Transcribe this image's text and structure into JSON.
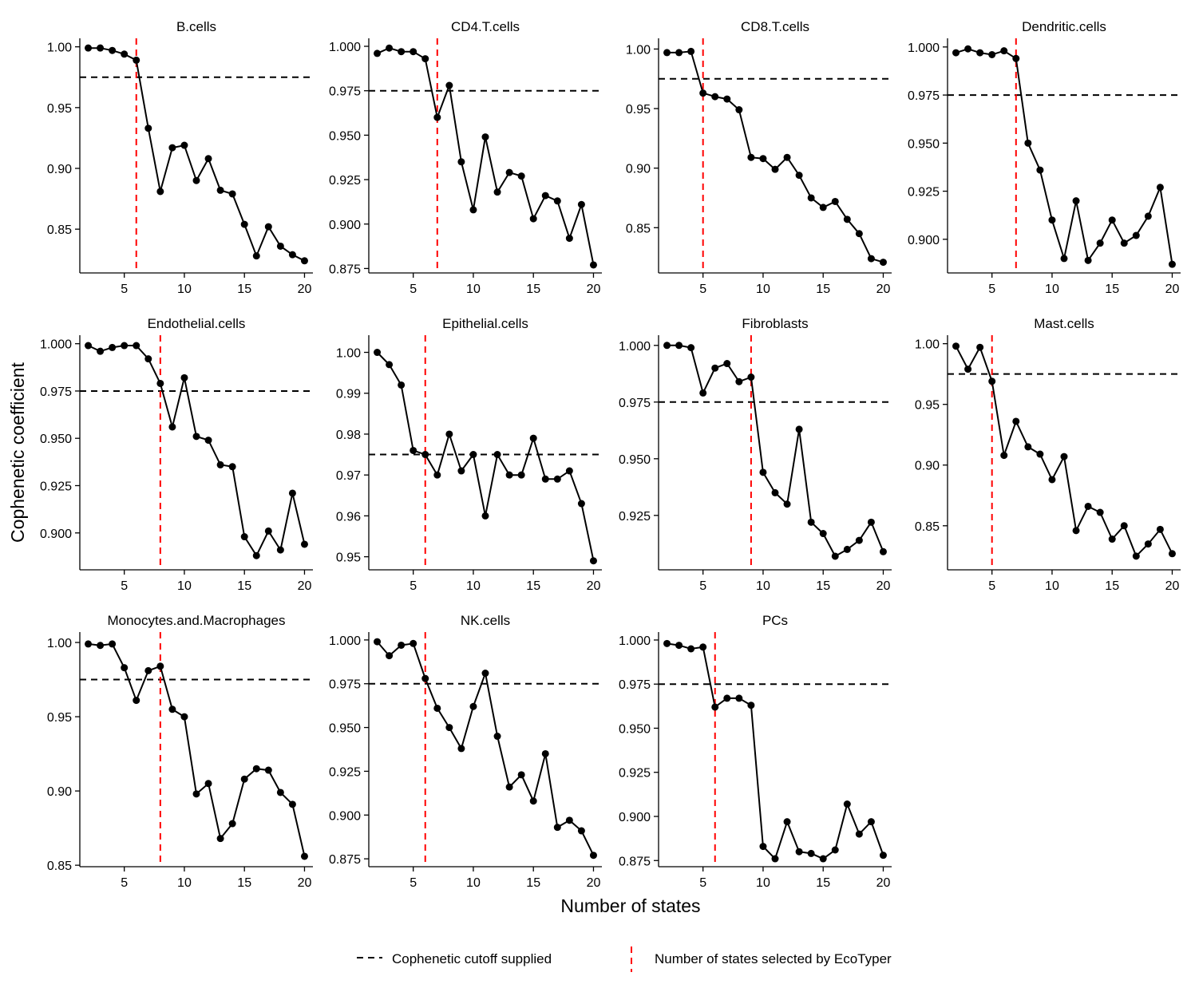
{
  "chart_data": {
    "type": "line",
    "xlabel": "Number of states",
    "ylabel": "Cophenetic coefficient",
    "cutoff": 0.975,
    "legend": {
      "position": "bottom",
      "items": [
        {
          "label": "Cophenetic cutoff supplied",
          "style": "black-dashed-horizontal"
        },
        {
          "label": "Number of states selected by EcoTyper",
          "style": "red-dashed-vertical"
        }
      ]
    },
    "colors": {
      "line": "#000000",
      "selected": "#ff0000",
      "cutoff": "#000000"
    },
    "panels": [
      {
        "title": "B.cells",
        "selected_k": 6,
        "ylim": [
          0.814,
          1.007
        ],
        "yticks": [
          0.85,
          0.9,
          0.95,
          1.0
        ],
        "ytick_labels": [
          "0.85",
          "0.90",
          "0.95",
          "1.00"
        ],
        "x": [
          2,
          3,
          4,
          5,
          6,
          7,
          8,
          9,
          10,
          11,
          12,
          13,
          14,
          15,
          16,
          17,
          18,
          19,
          20
        ],
        "values": [
          0.999,
          0.999,
          0.997,
          0.994,
          0.989,
          0.933,
          0.881,
          0.917,
          0.919,
          0.89,
          0.908,
          0.882,
          0.879,
          0.854,
          0.828,
          0.852,
          0.836,
          0.829,
          0.824
        ]
      },
      {
        "title": "CD4.T.cells",
        "selected_k": 7,
        "ylim": [
          0.8725,
          1.0045
        ],
        "yticks": [
          0.875,
          0.9,
          0.925,
          0.95,
          0.975,
          1.0
        ],
        "ytick_labels": [
          "0.875",
          "0.900",
          "0.925",
          "0.950",
          "0.975",
          "1.000"
        ],
        "x": [
          2,
          3,
          4,
          5,
          6,
          7,
          8,
          9,
          10,
          11,
          12,
          13,
          14,
          15,
          16,
          17,
          18,
          19,
          20
        ],
        "values": [
          0.996,
          0.999,
          0.997,
          0.997,
          0.993,
          0.96,
          0.978,
          0.935,
          0.908,
          0.949,
          0.918,
          0.929,
          0.927,
          0.903,
          0.916,
          0.913,
          0.892,
          0.911,
          0.877
        ]
      },
      {
        "title": "CD8.T.cells",
        "selected_k": 5,
        "ylim": [
          0.812,
          1.009
        ],
        "yticks": [
          0.85,
          0.9,
          0.95,
          1.0
        ],
        "ytick_labels": [
          "0.85",
          "0.90",
          "0.95",
          "1.00"
        ],
        "x": [
          2,
          3,
          4,
          5,
          6,
          7,
          8,
          9,
          10,
          11,
          12,
          13,
          14,
          15,
          16,
          17,
          18,
          19,
          20
        ],
        "values": [
          0.997,
          0.997,
          0.998,
          0.963,
          0.96,
          0.958,
          0.949,
          0.909,
          0.908,
          0.899,
          0.909,
          0.894,
          0.875,
          0.867,
          0.872,
          0.857,
          0.845,
          0.824,
          0.821
        ]
      },
      {
        "title": "Dendritic.cells",
        "selected_k": 7,
        "ylim": [
          0.8825,
          1.0045
        ],
        "yticks": [
          0.9,
          0.925,
          0.95,
          0.975,
          1.0
        ],
        "ytick_labels": [
          "0.900",
          "0.925",
          "0.950",
          "0.975",
          "1.000"
        ],
        "x": [
          2,
          3,
          4,
          5,
          6,
          7,
          8,
          9,
          10,
          11,
          12,
          13,
          14,
          15,
          16,
          17,
          18,
          19,
          20
        ],
        "values": [
          0.997,
          0.999,
          0.997,
          0.996,
          0.998,
          0.994,
          0.95,
          0.936,
          0.91,
          0.89,
          0.92,
          0.889,
          0.898,
          0.91,
          0.898,
          0.902,
          0.912,
          0.927,
          0.887
        ]
      },
      {
        "title": "Endothelial.cells",
        "selected_k": 8,
        "ylim": [
          0.8805,
          1.0045
        ],
        "yticks": [
          0.9,
          0.925,
          0.95,
          0.975,
          1.0
        ],
        "ytick_labels": [
          "0.900",
          "0.925",
          "0.950",
          "0.975",
          "1.000"
        ],
        "x": [
          2,
          3,
          4,
          5,
          6,
          7,
          8,
          9,
          10,
          11,
          12,
          13,
          14,
          15,
          16,
          17,
          18,
          19,
          20
        ],
        "values": [
          0.999,
          0.996,
          0.998,
          0.999,
          0.999,
          0.992,
          0.979,
          0.956,
          0.982,
          0.951,
          0.949,
          0.936,
          0.935,
          0.898,
          0.888,
          0.901,
          0.891,
          0.921,
          0.894
        ]
      },
      {
        "title": "Epithelial.cells",
        "selected_k": 6,
        "ylim": [
          0.9468,
          1.0042
        ],
        "yticks": [
          0.95,
          0.96,
          0.97,
          0.98,
          0.99,
          1.0
        ],
        "ytick_labels": [
          "0.95",
          "0.96",
          "0.97",
          "0.98",
          "0.99",
          "1.00"
        ],
        "x": [
          2,
          3,
          4,
          5,
          6,
          7,
          8,
          9,
          10,
          11,
          12,
          13,
          14,
          15,
          16,
          17,
          18,
          19,
          20
        ],
        "values": [
          1.0,
          0.997,
          0.992,
          0.976,
          0.975,
          0.97,
          0.98,
          0.971,
          0.975,
          0.96,
          0.975,
          0.97,
          0.97,
          0.979,
          0.969,
          0.969,
          0.971,
          0.963,
          0.949
        ]
      },
      {
        "title": "Fibroblasts",
        "selected_k": 9,
        "ylim": [
          0.901,
          1.0045
        ],
        "yticks": [
          0.925,
          0.95,
          0.975,
          1.0
        ],
        "ytick_labels": [
          "0.925",
          "0.950",
          "0.975",
          "1.000"
        ],
        "x": [
          2,
          3,
          4,
          5,
          6,
          7,
          8,
          9,
          10,
          11,
          12,
          13,
          14,
          15,
          16,
          17,
          18,
          19,
          20
        ],
        "values": [
          1.0,
          1.0,
          0.999,
          0.979,
          0.99,
          0.992,
          0.984,
          0.986,
          0.944,
          0.935,
          0.93,
          0.963,
          0.922,
          0.917,
          0.907,
          0.91,
          0.914,
          0.922,
          0.909
        ]
      },
      {
        "title": "Mast.cells",
        "selected_k": 5,
        "ylim": [
          0.8137,
          1.007
        ],
        "yticks": [
          0.85,
          0.9,
          0.95,
          1.0
        ],
        "ytick_labels": [
          "0.85",
          "0.90",
          "0.95",
          "1.00"
        ],
        "x": [
          2,
          3,
          4,
          5,
          6,
          7,
          8,
          9,
          10,
          11,
          12,
          13,
          14,
          15,
          16,
          17,
          18,
          19,
          20
        ],
        "values": [
          0.998,
          0.979,
          0.997,
          0.969,
          0.908,
          0.936,
          0.915,
          0.909,
          0.888,
          0.907,
          0.846,
          0.866,
          0.861,
          0.839,
          0.85,
          0.825,
          0.835,
          0.847,
          0.827
        ]
      },
      {
        "title": "Monocytes.and.Macrophages",
        "selected_k": 8,
        "ylim": [
          0.849,
          1.007
        ],
        "yticks": [
          0.85,
          0.9,
          0.95,
          1.0
        ],
        "ytick_labels": [
          "0.85",
          "0.90",
          "0.95",
          "1.00"
        ],
        "x": [
          2,
          3,
          4,
          5,
          6,
          7,
          8,
          9,
          10,
          11,
          12,
          13,
          14,
          15,
          16,
          17,
          18,
          19,
          20
        ],
        "values": [
          0.999,
          0.998,
          0.999,
          0.983,
          0.961,
          0.981,
          0.984,
          0.955,
          0.95,
          0.898,
          0.905,
          0.868,
          0.878,
          0.908,
          0.915,
          0.914,
          0.899,
          0.891,
          0.856
        ]
      },
      {
        "title": "NK.cells",
        "selected_k": 6,
        "ylim": [
          0.8705,
          1.0045
        ],
        "yticks": [
          0.875,
          0.9,
          0.925,
          0.95,
          0.975,
          1.0
        ],
        "ytick_labels": [
          "0.875",
          "0.900",
          "0.925",
          "0.950",
          "0.975",
          "1.000"
        ],
        "x": [
          2,
          3,
          4,
          5,
          6,
          7,
          8,
          9,
          10,
          11,
          12,
          13,
          14,
          15,
          16,
          17,
          18,
          19,
          20
        ],
        "values": [
          0.999,
          0.991,
          0.997,
          0.998,
          0.978,
          0.961,
          0.95,
          0.938,
          0.962,
          0.981,
          0.945,
          0.916,
          0.923,
          0.908,
          0.935,
          0.893,
          0.897,
          0.891,
          0.877
        ]
      },
      {
        "title": "PCs",
        "selected_k": 6,
        "ylim": [
          0.8715,
          1.0045
        ],
        "yticks": [
          0.875,
          0.9,
          0.925,
          0.95,
          0.975,
          1.0
        ],
        "ytick_labels": [
          "0.875",
          "0.900",
          "0.925",
          "0.950",
          "0.975",
          "1.000"
        ],
        "x": [
          2,
          3,
          4,
          5,
          6,
          7,
          8,
          9,
          10,
          11,
          12,
          13,
          14,
          15,
          16,
          17,
          18,
          19,
          20
        ],
        "values": [
          0.998,
          0.997,
          0.995,
          0.996,
          0.962,
          0.967,
          0.967,
          0.963,
          0.883,
          0.876,
          0.897,
          0.88,
          0.879,
          0.876,
          0.881,
          0.907,
          0.89,
          0.897,
          0.878
        ]
      }
    ]
  }
}
